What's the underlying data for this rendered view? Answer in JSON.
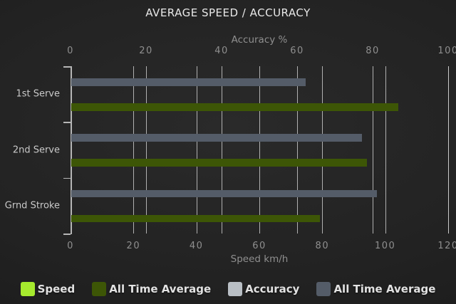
{
  "title": "AVERAGE SPEED / ACCURACY",
  "chart_data": {
    "type": "bar",
    "orientation": "horizontal",
    "title": "AVERAGE SPEED / ACCURACY",
    "categories": [
      "1st Serve",
      "2nd Serve",
      "Grnd Stroke"
    ],
    "axes": {
      "top": {
        "label": "Accuracy %",
        "min": 0,
        "max": 100,
        "ticks": [
          0,
          20,
          40,
          60,
          80,
          100
        ]
      },
      "bottom": {
        "label": "Speed km/h",
        "min": 0,
        "max": 120,
        "ticks": [
          0,
          20,
          40,
          60,
          80,
          100,
          120
        ]
      }
    },
    "series": [
      {
        "name": "Speed",
        "axis": "bottom",
        "color": "#a6ea2e",
        "values": []
      },
      {
        "name": "All Time Average",
        "axis": "bottom",
        "color": "#3d5606",
        "values": [
          104,
          94,
          79
        ]
      },
      {
        "name": "Accuracy",
        "axis": "top",
        "color": "#b9bfc5",
        "values": []
      },
      {
        "name": "All Time Average",
        "axis": "top",
        "color": "#545c68",
        "values": [
          62,
          77,
          81
        ]
      }
    ],
    "grid": true,
    "legend_position": "bottom",
    "colors": {
      "background": "#1f1f1f",
      "title_text": "#e8e8e8",
      "axis_text": "#8f8f8f",
      "category_text": "#c9c9c9",
      "gridline": "#d0d0d0"
    }
  }
}
